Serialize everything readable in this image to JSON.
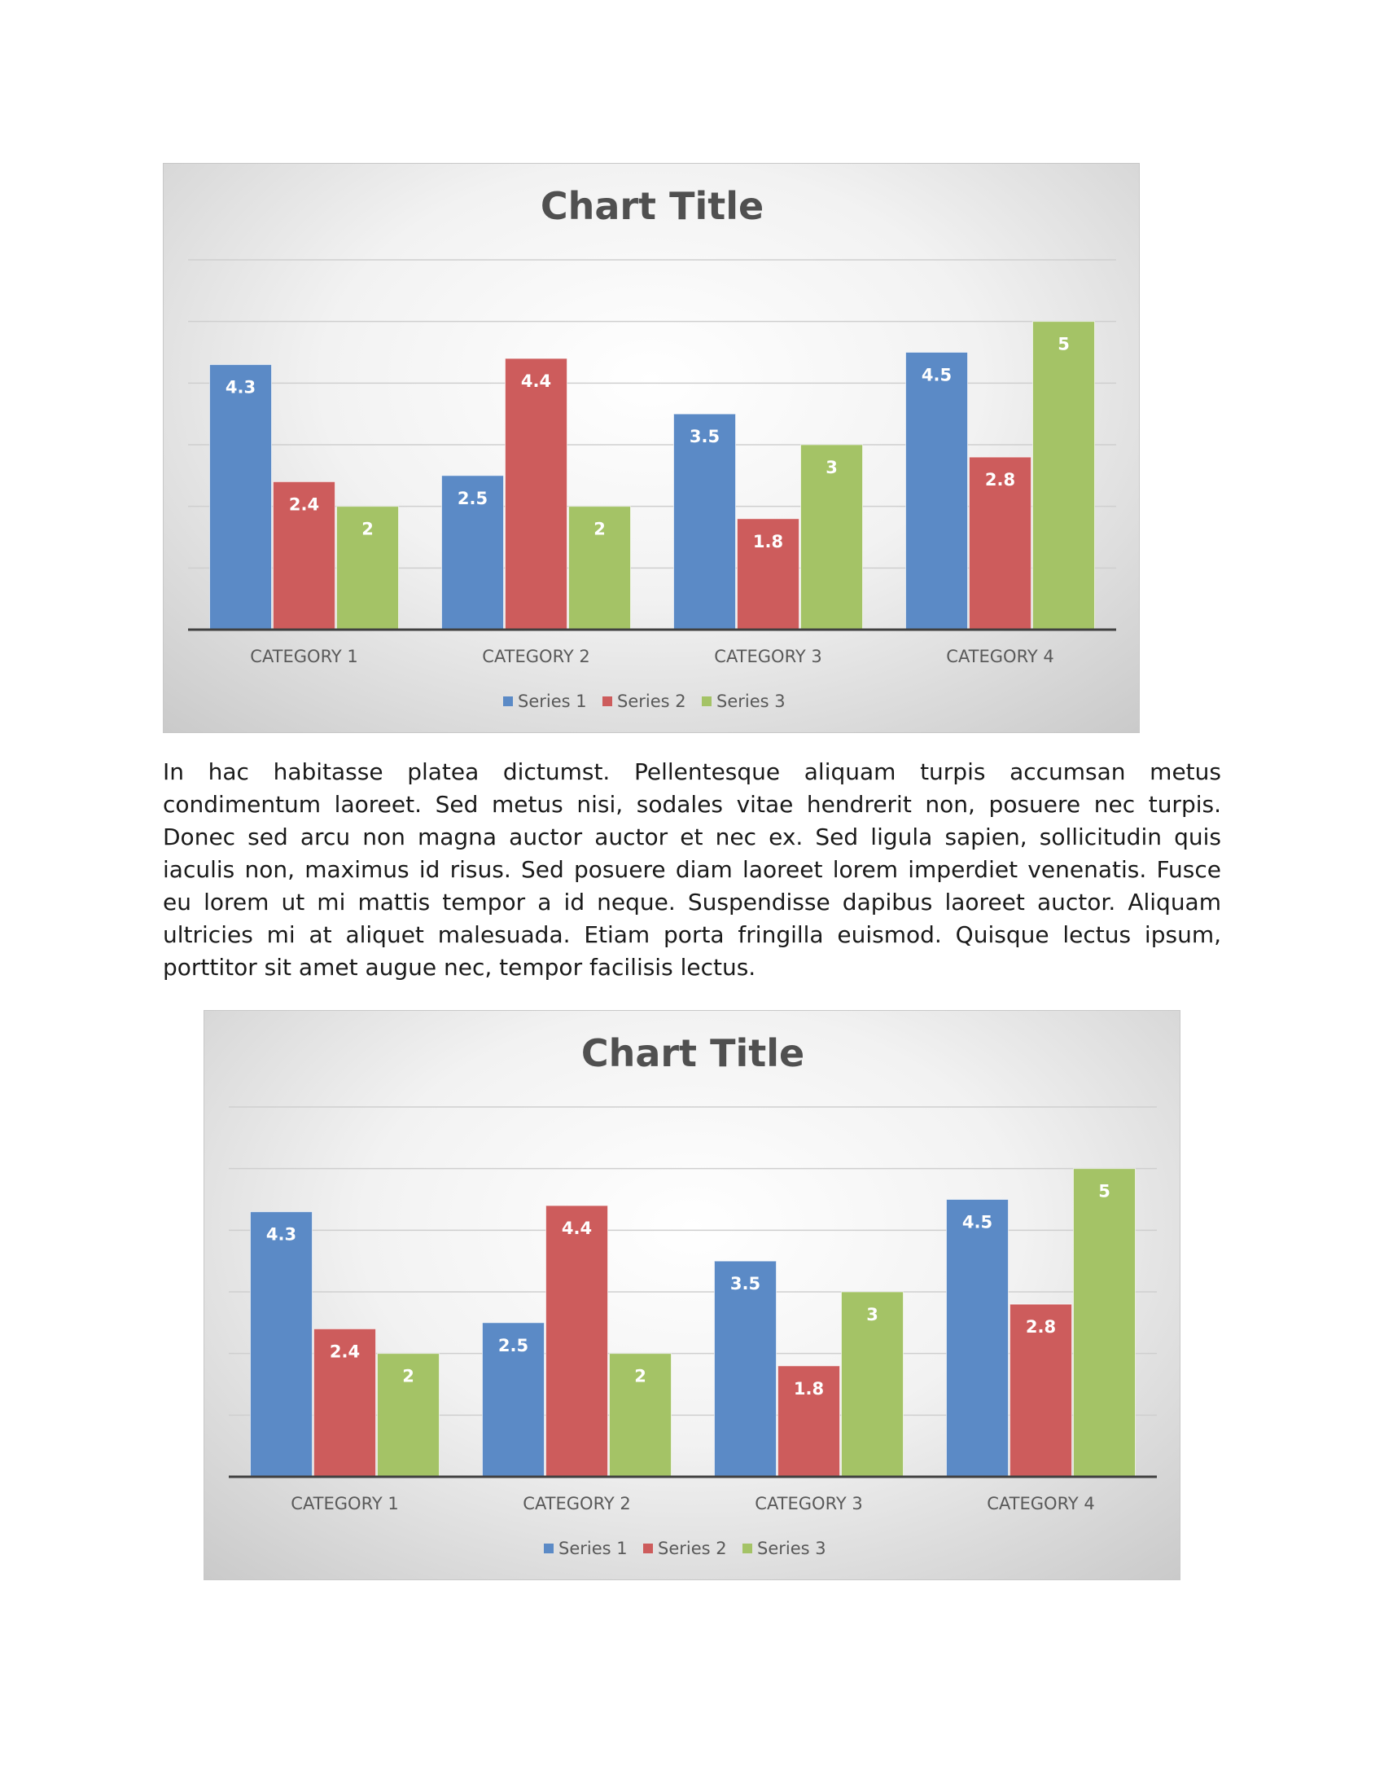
{
  "chart_data": [
    {
      "type": "bar",
      "title": "Chart Title",
      "categories": [
        "CATEGORY 1",
        "CATEGORY 2",
        "CATEGORY 3",
        "CATEGORY 4"
      ],
      "series": [
        {
          "name": "Series 1",
          "color": "#5b8ac6",
          "values": [
            4.3,
            2.5,
            3.5,
            4.5
          ]
        },
        {
          "name": "Series 2",
          "color": "#cd5c5c",
          "values": [
            2.4,
            4.4,
            1.8,
            2.8
          ]
        },
        {
          "name": "Series 3",
          "color": "#a4c366",
          "values": [
            2,
            2,
            3,
            5
          ]
        }
      ],
      "ylim": [
        0,
        6
      ],
      "grid": true,
      "legend": "bottom",
      "data_labels": true
    },
    {
      "type": "bar",
      "title": "Chart Title",
      "categories": [
        "CATEGORY 1",
        "CATEGORY 2",
        "CATEGORY 3",
        "CATEGORY 4"
      ],
      "series": [
        {
          "name": "Series 1",
          "color": "#5b8ac6",
          "values": [
            4.3,
            2.5,
            3.5,
            4.5
          ]
        },
        {
          "name": "Series 2",
          "color": "#cd5c5c",
          "values": [
            2.4,
            4.4,
            1.8,
            2.8
          ]
        },
        {
          "name": "Series 3",
          "color": "#a4c366",
          "values": [
            2,
            2,
            3,
            5
          ]
        }
      ],
      "ylim": [
        0,
        6
      ],
      "grid": true,
      "legend": "bottom",
      "data_labels": true
    }
  ],
  "document": {
    "paragraph": "In hac habitasse platea dictumst. Pellentesque aliquam turpis accumsan metus condimentum laoreet. Sed metus nisi, sodales vitae hendrerit non, posuere nec turpis. Donec sed arcu non magna auctor auctor et nec ex. Sed ligula sapien, sollicitudin quis iaculis non, maximus id risus. Sed posuere diam laoreet lorem imperdiet venenatis. Fusce eu lorem ut mi mattis tempor a id neque. Suspendisse dapibus laoreet auctor. Aliquam ultricies mi at aliquet malesuada. Etiam porta fringilla euismod. Quisque lectus ipsum, porttitor sit amet augue nec, tempor facilisis lectus."
  }
}
